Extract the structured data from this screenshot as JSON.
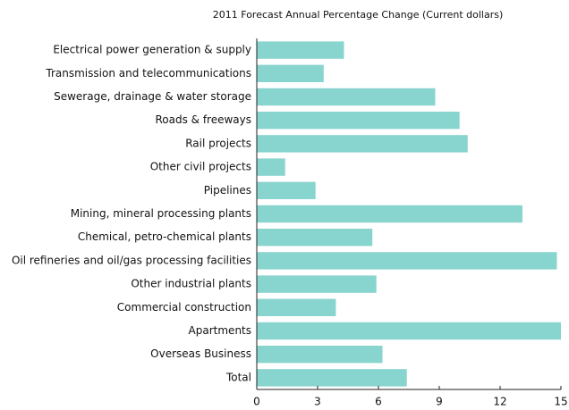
{
  "chart_data": {
    "type": "barh",
    "title": "2011 Forecast Annual Percentage Change (Current dollars)",
    "categories": [
      "Electrical power generation & supply",
      "Transmission and telecommunications",
      "Sewerage, drainage & water storage",
      "Roads & freeways",
      "Rail projects",
      "Other civil projects",
      "Pipelines",
      "Mining, mineral processing plants",
      "Chemical, petro-chemical plants",
      "Oil refineries and oil/gas processing facilities",
      "Other industrial plants",
      "Commercial construction",
      "Apartments",
      "Overseas Business",
      "Total"
    ],
    "values": [
      4.3,
      3.3,
      8.8,
      10.0,
      10.4,
      1.4,
      2.9,
      13.1,
      5.7,
      14.8,
      5.9,
      3.9,
      15.0,
      6.2,
      7.4
    ],
    "color": "#88d4ce",
    "xlim": [
      0,
      15
    ],
    "xticks": [
      0,
      3,
      6,
      9,
      12,
      15
    ]
  }
}
